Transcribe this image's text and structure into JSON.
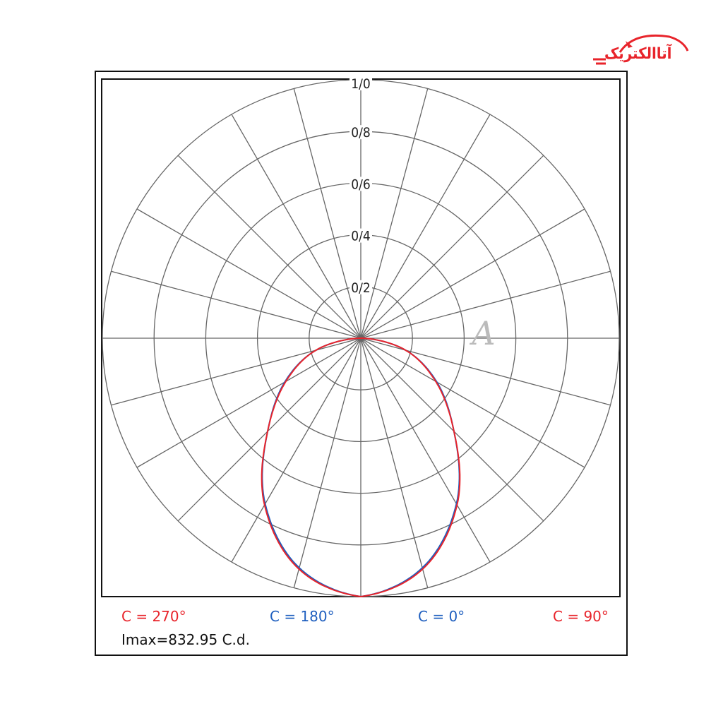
{
  "logo": {
    "text": "آتاالکتریک",
    "color": "#e8242b"
  },
  "watermark": {
    "text": "A"
  },
  "chart_data": {
    "type": "polar",
    "radial_ticks": [
      "0/2",
      "0/4",
      "0/6",
      "0/8",
      "1/0"
    ],
    "radial_tick_values": [
      0.2,
      0.4,
      0.6,
      0.8,
      1.0
    ],
    "radial_range": [
      0,
      1.0
    ],
    "angular_grid_step_deg": 15,
    "grid": true,
    "angles_deg": [
      0,
      15,
      30,
      45,
      60,
      75,
      90
    ],
    "series": [
      {
        "name": "C = 0° / C = 180°",
        "color": "#1f5fbf",
        "values": [
          1.0,
          0.92,
          0.74,
          0.51,
          0.34,
          0.18,
          0.0
        ]
      },
      {
        "name": "C = 90° / C = 270°",
        "color": "#e8242b",
        "values": [
          1.0,
          0.925,
          0.745,
          0.51,
          0.335,
          0.18,
          0.0
        ]
      }
    ],
    "legend": [
      {
        "label": "C = 270°",
        "color": "#e8242b"
      },
      {
        "label": "C = 180°",
        "color": "#1f5fbf"
      },
      {
        "label": "C = 0°",
        "color": "#1f5fbf"
      },
      {
        "label": "C = 90°",
        "color": "#e8242b"
      }
    ],
    "imax": "Imax=832.95 C.d."
  }
}
